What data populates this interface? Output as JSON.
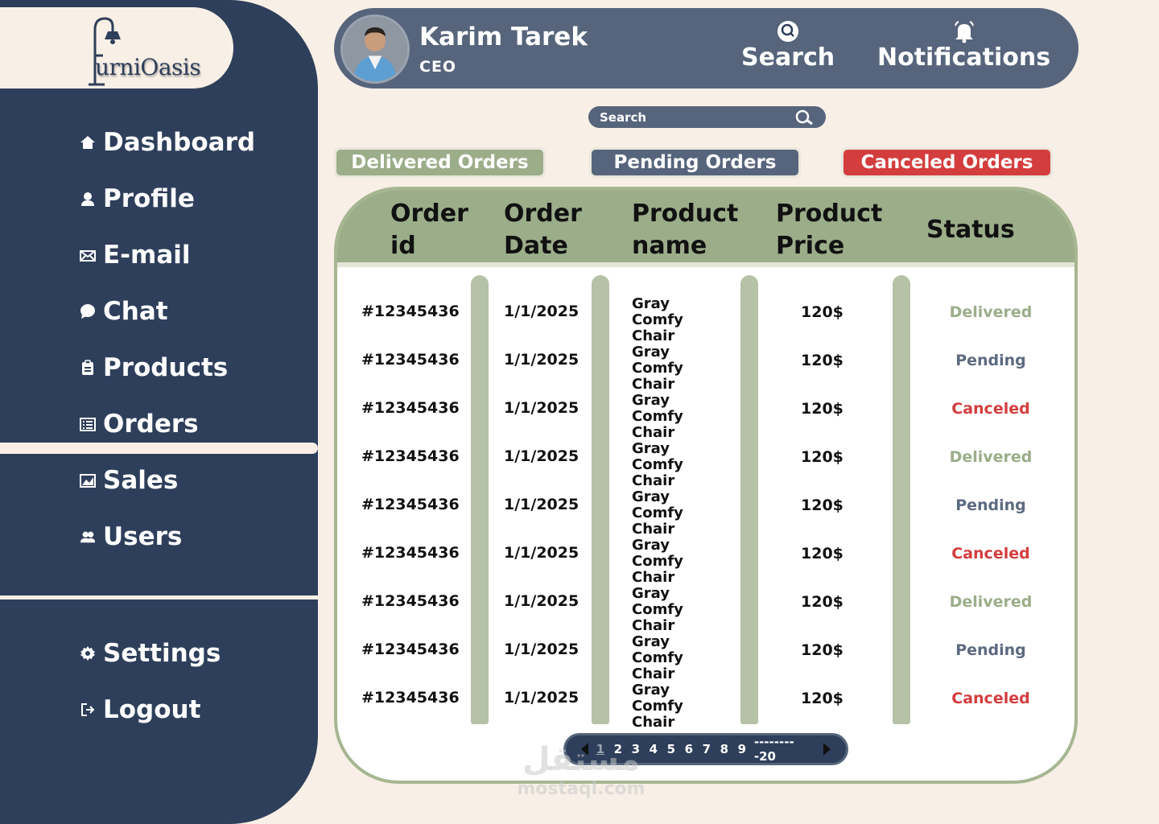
{
  "brand": {
    "logo_text": "urniOasis"
  },
  "sidebar": {
    "items": [
      {
        "label": "Dashboard",
        "icon": "home-icon"
      },
      {
        "label": "Profile",
        "icon": "user-icon"
      },
      {
        "label": "E-mail",
        "icon": "mail-icon"
      },
      {
        "label": "Chat",
        "icon": "chat-icon"
      },
      {
        "label": "Products",
        "icon": "clipboard-icon"
      },
      {
        "label": "Orders",
        "icon": "list-icon"
      },
      {
        "label": "Sales",
        "icon": "chart-icon"
      },
      {
        "label": "Users",
        "icon": "users-icon"
      }
    ],
    "bottom_items": [
      {
        "label": "Settings",
        "icon": "gear-icon"
      },
      {
        "label": "Logout",
        "icon": "logout-icon"
      }
    ],
    "active": "Orders"
  },
  "header": {
    "user_name": "Karim Tarek",
    "user_role": "CEO",
    "search_label": "Search",
    "notifications_label": "Notifications"
  },
  "search": {
    "placeholder": "Search"
  },
  "filters": {
    "delivered": "Delivered Orders",
    "pending": "Pending Orders",
    "canceled": "Canceled Orders"
  },
  "table": {
    "headers": {
      "order_id": [
        "Order",
        "id"
      ],
      "order_date": [
        "Order",
        "Date"
      ],
      "product_name": [
        "Product",
        "name"
      ],
      "product_price": [
        "Product",
        "Price"
      ],
      "status": "Status"
    },
    "rows": [
      {
        "id": "#12345436",
        "date": "1/1/2025",
        "name": [
          "Gray Comfy",
          "Chair"
        ],
        "price": "120$",
        "status": "Delivered"
      },
      {
        "id": "#12345436",
        "date": "1/1/2025",
        "name": [
          "Gray Comfy",
          "Chair"
        ],
        "price": "120$",
        "status": "Pending"
      },
      {
        "id": "#12345436",
        "date": "1/1/2025",
        "name": [
          "Gray Comfy",
          "Chair"
        ],
        "price": "120$",
        "status": "Canceled"
      },
      {
        "id": "#12345436",
        "date": "1/1/2025",
        "name": [
          "Gray Comfy",
          "Chair"
        ],
        "price": "120$",
        "status": "Delivered"
      },
      {
        "id": "#12345436",
        "date": "1/1/2025",
        "name": [
          "Gray Comfy",
          "Chair"
        ],
        "price": "120$",
        "status": "Pending"
      },
      {
        "id": "#12345436",
        "date": "1/1/2025",
        "name": [
          "Gray Comfy",
          "Chair"
        ],
        "price": "120$",
        "status": "Canceled"
      },
      {
        "id": "#12345436",
        "date": "1/1/2025",
        "name": [
          "Gray Comfy",
          "Chair"
        ],
        "price": "120$",
        "status": "Delivered"
      },
      {
        "id": "#12345436",
        "date": "1/1/2025",
        "name": [
          "Gray Comfy",
          "Chair"
        ],
        "price": "120$",
        "status": "Pending"
      },
      {
        "id": "#12345436",
        "date": "1/1/2025",
        "name": [
          "Gray Comfy",
          "Chair"
        ],
        "price": "120$",
        "status": "Canceled"
      }
    ]
  },
  "pagination": {
    "current": "1",
    "pages": [
      "1",
      "2",
      "3",
      "4",
      "5",
      "6",
      "7",
      "8",
      "9"
    ],
    "last": "---------20"
  },
  "watermark": {
    "arabic": "مستقل",
    "site": "mostaql.com"
  },
  "colors": {
    "sidebar": "#2e3f5b",
    "header": "#56657c",
    "background": "#f8efe6",
    "sage": "#9bad89",
    "red": "#d43d3d"
  }
}
